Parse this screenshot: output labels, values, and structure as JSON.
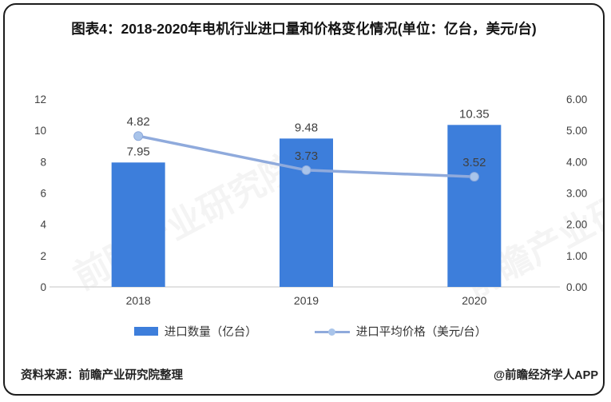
{
  "header": {
    "title": "图表4：2018-2020年电机行业进口量和价格变化情况(单位：亿台，美元/台)"
  },
  "chart_data": {
    "type": "bar+line",
    "title": "图表4：2018-2020年电机行业进口量和价格变化情况(单位：亿台，美元/台)",
    "categories": [
      "2018",
      "2019",
      "2020"
    ],
    "series": [
      {
        "name": "进口数量（亿台）",
        "type": "bar",
        "axis": "left",
        "values": [
          7.95,
          9.48,
          10.35
        ]
      },
      {
        "name": "进口平均价格（美元/台）",
        "type": "line",
        "axis": "right",
        "values": [
          4.82,
          3.73,
          3.52
        ]
      }
    ],
    "left_axis": {
      "min": 0,
      "max": 12,
      "tick_labels": [
        "12",
        "10",
        "8",
        "6",
        "4",
        "2",
        "0"
      ]
    },
    "right_axis": {
      "min": 0,
      "max": 6,
      "tick_labels": [
        "6.00",
        "5.00",
        "4.00",
        "3.00",
        "2.00",
        "1.00",
        "0.00"
      ]
    },
    "grid": false,
    "legend_position": "bottom",
    "colors": {
      "bar": "#3D7EDB",
      "line": "#8FAADC",
      "marker": "#A9C4EA",
      "data_label": "#404040",
      "tick_label": "#404040",
      "axis_line": "#D9D9D9"
    }
  },
  "watermark": {
    "text": "前瞻产业研究院"
  },
  "footer": {
    "source": "资料来源：前瞻产业研究院整理",
    "credit": "@前瞻经济学人APP"
  }
}
